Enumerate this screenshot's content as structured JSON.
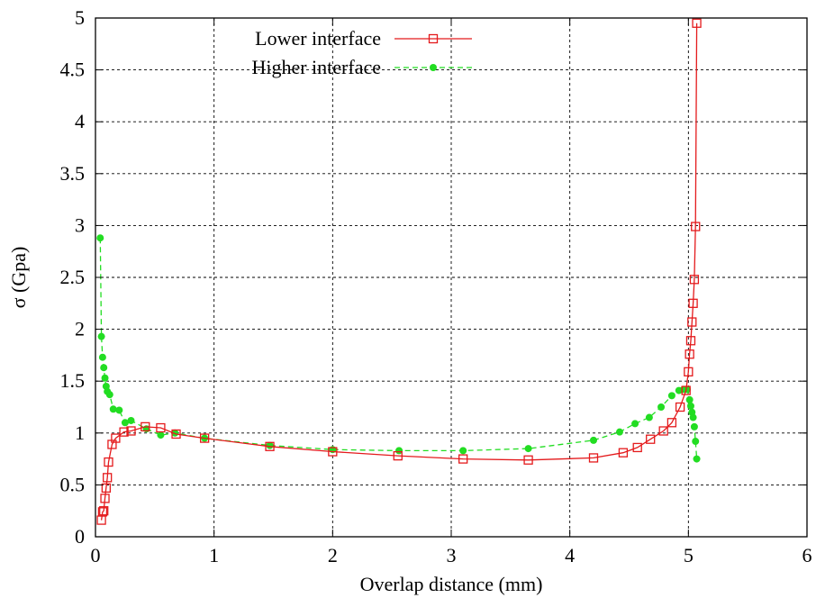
{
  "chart_data": {
    "type": "line",
    "xlabel": "Overlap distance (mm)",
    "ylabel": "σ (Gpa)",
    "xlim": [
      0,
      6
    ],
    "ylim": [
      0,
      5
    ],
    "xticks": [
      0,
      1,
      2,
      3,
      4,
      5,
      6
    ],
    "yticks": [
      0,
      0.5,
      1,
      1.5,
      2,
      2.5,
      3,
      3.5,
      4,
      4.5,
      5
    ],
    "grid": true,
    "legend_position": "top-center",
    "series": [
      {
        "name": "Lower interface",
        "color": "#e41a1c",
        "line": "solid",
        "marker": "open-square",
        "x": [
          0.05,
          0.06,
          0.07,
          0.08,
          0.09,
          0.1,
          0.11,
          0.14,
          0.17,
          0.24,
          0.3,
          0.42,
          0.55,
          0.68,
          0.92,
          1.47,
          2.0,
          2.55,
          3.1,
          3.65,
          4.2,
          4.45,
          4.57,
          4.68,
          4.79,
          4.86,
          4.93,
          4.98,
          5.0,
          5.01,
          5.02,
          5.03,
          5.04,
          5.05,
          5.06,
          5.07
        ],
        "y": [
          0.16,
          0.24,
          0.25,
          0.37,
          0.47,
          0.57,
          0.72,
          0.89,
          0.95,
          1.01,
          1.02,
          1.06,
          1.05,
          0.99,
          0.95,
          0.87,
          0.82,
          0.78,
          0.75,
          0.74,
          0.76,
          0.81,
          0.86,
          0.94,
          1.02,
          1.1,
          1.25,
          1.41,
          1.59,
          1.76,
          1.89,
          2.07,
          2.25,
          2.48,
          2.99,
          4.95
        ]
      },
      {
        "name": "Higher interface",
        "color": "#22dd22",
        "line": "dashed",
        "marker": "filled-circle",
        "x": [
          0.04,
          0.05,
          0.06,
          0.07,
          0.08,
          0.09,
          0.1,
          0.12,
          0.15,
          0.2,
          0.25,
          0.3,
          0.43,
          0.55,
          0.67,
          0.92,
          1.47,
          2.0,
          2.56,
          3.1,
          3.65,
          4.2,
          4.42,
          4.55,
          4.67,
          4.77,
          4.86,
          4.92,
          4.96,
          4.99,
          5.01,
          5.02,
          5.03,
          5.04,
          5.05,
          5.06,
          5.07
        ],
        "y": [
          2.88,
          1.93,
          1.73,
          1.63,
          1.53,
          1.45,
          1.4,
          1.37,
          1.23,
          1.22,
          1.1,
          1.12,
          1.04,
          0.98,
          1.0,
          0.95,
          0.88,
          0.84,
          0.83,
          0.83,
          0.85,
          0.93,
          1.01,
          1.09,
          1.15,
          1.25,
          1.36,
          1.41,
          1.42,
          1.42,
          1.32,
          1.26,
          1.2,
          1.15,
          1.06,
          0.92,
          0.75
        ]
      }
    ]
  }
}
